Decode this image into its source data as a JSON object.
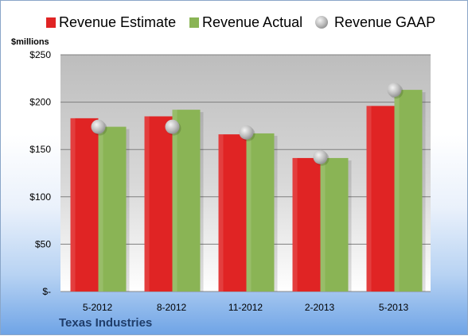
{
  "chart_data": {
    "type": "bar",
    "categories": [
      "5-2012",
      "8-2012",
      "11-2012",
      "2-2013",
      "5-2013"
    ],
    "series": [
      {
        "name": "Revenue Estimate",
        "values": [
          183,
          185,
          166,
          141,
          196
        ],
        "color": "#e02424"
      },
      {
        "name": "Revenue Actual",
        "values": [
          174,
          192,
          167,
          141,
          213
        ],
        "color": "#8ab455"
      }
    ],
    "markers": {
      "name": "Revenue GAAP",
      "values": [
        174,
        174,
        168,
        142,
        213
      ],
      "color": "#b8b8b8"
    },
    "ylabel": "$millions",
    "ylim": [
      0,
      250
    ],
    "yticks": [
      0,
      50,
      100,
      150,
      200,
      250
    ],
    "yticklabels": [
      "$-",
      "$50",
      "$100",
      "$150",
      "$200",
      "$250"
    ],
    "grid": true,
    "legend_position": "top"
  },
  "footer": {
    "company": "Texas Industries"
  }
}
